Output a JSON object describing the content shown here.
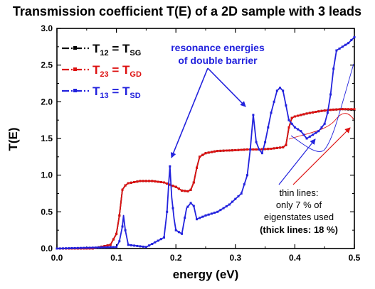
{
  "chart_data": {
    "type": "line",
    "title": "Transmission coefficient T(E) of a 2D sample with 3 leads",
    "xlabel": "energy (eV)",
    "ylabel": "T(E)",
    "xlim": [
      0.0,
      0.5
    ],
    "ylim": [
      0.0,
      3.0
    ],
    "xticks": [
      "0.0",
      "0.1",
      "0.2",
      "0.3",
      "0.4",
      "0.5"
    ],
    "yticks": [
      "0.0",
      "0.5",
      "1.0",
      "1.5",
      "2.0",
      "2.5",
      "3.0"
    ],
    "grid": false,
    "legend_position": "top-left",
    "legend": [
      {
        "sym": "T",
        "sub": "12",
        "eq": " = T",
        "sub2": "SG",
        "color": "#000000"
      },
      {
        "sym": "T",
        "sub": "23",
        "eq": " = T",
        "sub2": "GD",
        "color": "#dd1111"
      },
      {
        "sym": "T",
        "sub": "13",
        "eq": " = T",
        "sub2": "SD",
        "color": "#2222dd"
      }
    ],
    "series": [
      {
        "color": "#000000",
        "x": [
          0.0,
          0.06,
          0.09,
          0.1,
          0.105,
          0.11,
          0.115,
          0.12,
          0.14,
          0.16,
          0.18,
          0.2,
          0.21,
          0.22,
          0.225,
          0.23,
          0.235,
          0.24,
          0.25,
          0.27,
          0.3,
          0.32,
          0.34,
          0.36,
          0.38,
          0.385,
          0.39,
          0.395,
          0.4,
          0.42,
          0.44,
          0.46,
          0.48,
          0.5
        ],
        "y": [
          0.0,
          0.0,
          0.05,
          0.2,
          0.45,
          0.8,
          0.86,
          0.89,
          0.92,
          0.92,
          0.9,
          0.84,
          0.79,
          0.78,
          0.8,
          0.9,
          1.1,
          1.25,
          1.3,
          1.33,
          1.34,
          1.35,
          1.35,
          1.36,
          1.38,
          1.41,
          1.65,
          1.78,
          1.8,
          1.84,
          1.87,
          1.89,
          1.9,
          1.89
        ]
      },
      {
        "color": "#dd1111",
        "x": [
          0.0,
          0.06,
          0.09,
          0.1,
          0.105,
          0.11,
          0.115,
          0.12,
          0.14,
          0.16,
          0.18,
          0.2,
          0.21,
          0.22,
          0.225,
          0.23,
          0.235,
          0.24,
          0.25,
          0.27,
          0.3,
          0.32,
          0.34,
          0.36,
          0.38,
          0.385,
          0.39,
          0.395,
          0.4,
          0.42,
          0.44,
          0.46,
          0.48,
          0.5
        ],
        "y": [
          0.0,
          0.0,
          0.05,
          0.2,
          0.45,
          0.8,
          0.86,
          0.89,
          0.92,
          0.92,
          0.9,
          0.84,
          0.79,
          0.78,
          0.8,
          0.9,
          1.1,
          1.25,
          1.3,
          1.33,
          1.34,
          1.35,
          1.35,
          1.36,
          1.38,
          1.41,
          1.65,
          1.78,
          1.8,
          1.84,
          1.87,
          1.89,
          1.9,
          1.9
        ]
      },
      {
        "color": "#2222dd",
        "x": [
          0.0,
          0.1,
          0.105,
          0.11,
          0.112,
          0.115,
          0.12,
          0.15,
          0.18,
          0.185,
          0.188,
          0.19,
          0.193,
          0.197,
          0.2,
          0.21,
          0.218,
          0.225,
          0.23,
          0.235,
          0.25,
          0.27,
          0.29,
          0.31,
          0.32,
          0.325,
          0.33,
          0.335,
          0.34,
          0.345,
          0.35,
          0.36,
          0.37,
          0.375,
          0.38,
          0.385,
          0.39,
          0.395,
          0.4,
          0.41,
          0.42,
          0.43,
          0.44,
          0.45,
          0.455,
          0.46,
          0.465,
          0.47,
          0.48,
          0.49,
          0.5
        ],
        "y": [
          0.0,
          0.02,
          0.1,
          0.3,
          0.45,
          0.25,
          0.05,
          0.02,
          0.15,
          0.5,
          0.9,
          1.12,
          0.7,
          0.4,
          0.25,
          0.2,
          0.55,
          0.62,
          0.58,
          0.4,
          0.45,
          0.5,
          0.6,
          0.75,
          1.0,
          1.35,
          1.82,
          1.45,
          1.35,
          1.3,
          1.45,
          1.85,
          2.15,
          2.19,
          2.15,
          1.95,
          1.75,
          1.7,
          1.65,
          1.6,
          1.5,
          1.55,
          1.6,
          1.7,
          1.85,
          2.1,
          2.45,
          2.7,
          2.75,
          2.8,
          2.88
        ]
      }
    ],
    "annotations": {
      "resonance": [
        "resonance energies",
        "of double barrier"
      ],
      "thin": [
        "thin lines:",
        "only 7 % of",
        "eigenstates used"
      ],
      "thick": "(thick lines: 18 %)"
    }
  }
}
